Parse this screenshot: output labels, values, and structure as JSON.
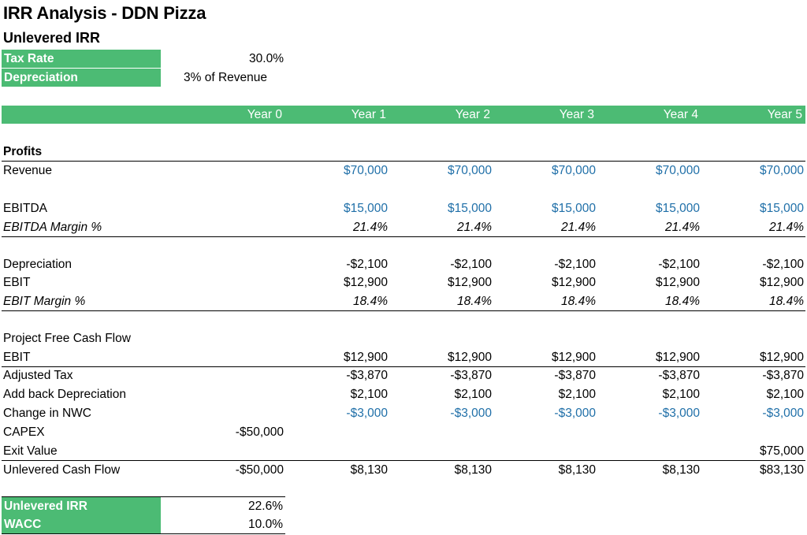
{
  "title": "IRR Analysis - DDN Pizza",
  "subtitle": "Unlevered IRR",
  "assumptions": [
    {
      "label": "Tax Rate",
      "value": "30.0%"
    },
    {
      "label": "Depreciation",
      "value": "3% of Revenue"
    }
  ],
  "years": [
    "Year 0",
    "Year 1",
    "Year 2",
    "Year 3",
    "Year 4",
    "Year 5"
  ],
  "profits_header": "Profits",
  "rows": {
    "revenue": {
      "label": "Revenue",
      "values": [
        "",
        "$70,000",
        "$70,000",
        "$70,000",
        "$70,000",
        "$70,000"
      ]
    },
    "ebitda": {
      "label": "EBITDA",
      "values": [
        "",
        "$15,000",
        "$15,000",
        "$15,000",
        "$15,000",
        "$15,000"
      ]
    },
    "ebitda_margin": {
      "label": "EBITDA Margin %",
      "values": [
        "",
        "21.4%",
        "21.4%",
        "21.4%",
        "21.4%",
        "21.4%"
      ]
    },
    "depreciation": {
      "label": "Depreciation",
      "values": [
        "",
        "-$2,100",
        "-$2,100",
        "-$2,100",
        "-$2,100",
        "-$2,100"
      ]
    },
    "ebit": {
      "label": "EBIT",
      "values": [
        "",
        "$12,900",
        "$12,900",
        "$12,900",
        "$12,900",
        "$12,900"
      ]
    },
    "ebit_margin": {
      "label": "EBIT Margin %",
      "values": [
        "",
        "18.4%",
        "18.4%",
        "18.4%",
        "18.4%",
        "18.4%"
      ]
    },
    "pfcf_header": {
      "label": "Project Free Cash Flow",
      "values": [
        "",
        "",
        "",
        "",
        "",
        ""
      ]
    },
    "ebit2": {
      "label": "EBIT",
      "values": [
        "",
        "$12,900",
        "$12,900",
        "$12,900",
        "$12,900",
        "$12,900"
      ]
    },
    "adj_tax": {
      "label": "Adjusted Tax",
      "values": [
        "",
        "-$3,870",
        "-$3,870",
        "-$3,870",
        "-$3,870",
        "-$3,870"
      ]
    },
    "add_dep": {
      "label": "Add back Depreciation",
      "values": [
        "",
        "$2,100",
        "$2,100",
        "$2,100",
        "$2,100",
        "$2,100"
      ]
    },
    "nwc": {
      "label": "Change in NWC",
      "values": [
        "",
        "-$3,000",
        "-$3,000",
        "-$3,000",
        "-$3,000",
        "-$3,000"
      ]
    },
    "capex": {
      "label": "CAPEX",
      "values": [
        "-$50,000",
        "",
        "",
        "",
        "",
        ""
      ]
    },
    "exit": {
      "label": "Exit Value",
      "values": [
        "",
        "",
        "",
        "",
        "",
        "$75,000"
      ]
    },
    "ucf": {
      "label": "Unlevered Cash Flow",
      "values": [
        "-$50,000",
        "$8,130",
        "$8,130",
        "$8,130",
        "$8,130",
        "$83,130"
      ]
    }
  },
  "summary": [
    {
      "label": "Unlevered IRR",
      "value": "22.6%"
    },
    {
      "label": "WACC",
      "value": "10.0%"
    }
  ],
  "colors": {
    "header_green": "#4cbb74",
    "input_blue": "#1f6fa8"
  }
}
